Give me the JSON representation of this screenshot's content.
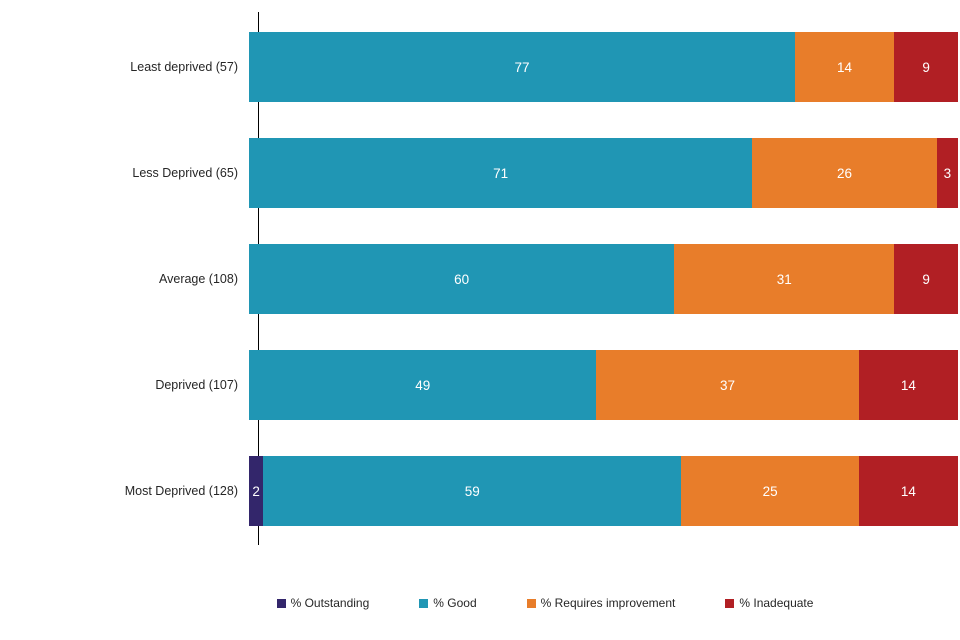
{
  "chart_data": {
    "type": "bar",
    "orientation": "horizontal",
    "stacked": true,
    "title": "",
    "categories": [
      "Least deprived (57)",
      "Less Deprived (65)",
      "Average (108)",
      "Deprived (107)",
      "Most Deprived (128)"
    ],
    "series": [
      {
        "name": "% Outstanding",
        "color": "#33266b",
        "values": [
          0,
          0,
          0,
          0,
          2
        ]
      },
      {
        "name": "% Good",
        "color": "#2096b4",
        "values": [
          77,
          71,
          60,
          49,
          59
        ]
      },
      {
        "name": "% Requires improvement",
        "color": "#e87d2a",
        "values": [
          14,
          26,
          31,
          37,
          25
        ]
      },
      {
        "name": "% Inadequate",
        "color": "#b11f24",
        "values": [
          9,
          3,
          9,
          14,
          14
        ]
      }
    ],
    "xlim": [
      0,
      100
    ],
    "value_labels": true,
    "value_label_color": "#ffffff",
    "legend_position": "bottom",
    "axis_color": "#000000",
    "background": "#ffffff"
  }
}
